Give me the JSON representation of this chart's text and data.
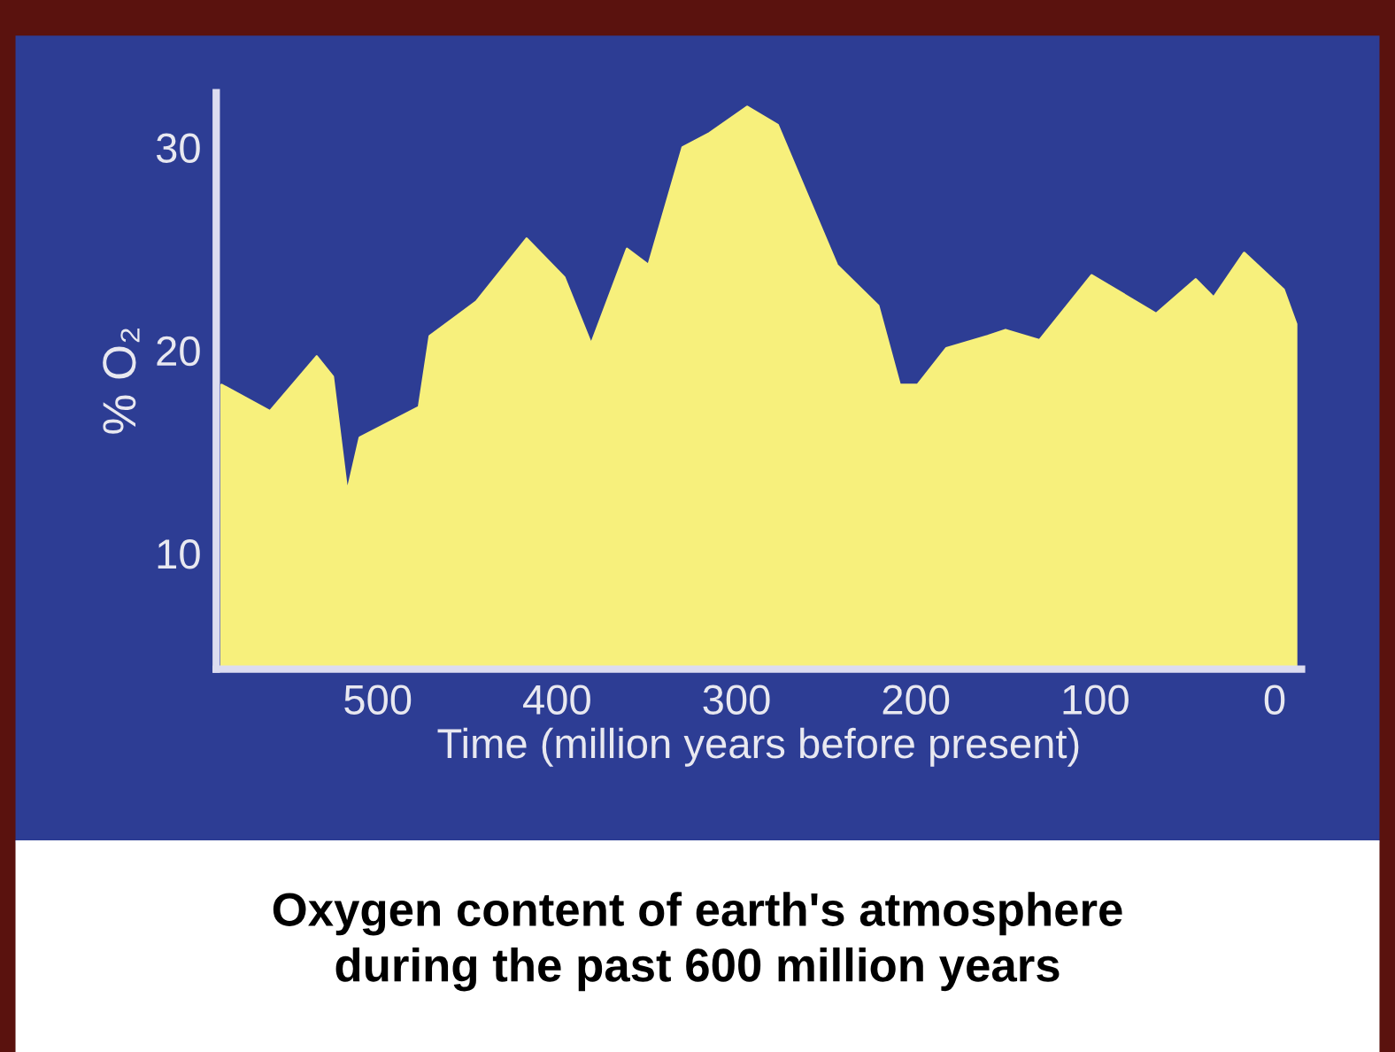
{
  "chart_data": {
    "type": "area",
    "title": "Oxygen content of earth's atmosphere\nduring the past 600 million years",
    "xlabel": "Time (million years before present)",
    "ylabel": "% O₂",
    "x": [
      587,
      560,
      534,
      525,
      517,
      510,
      477,
      471,
      445,
      417,
      396,
      381,
      361,
      349,
      330,
      315,
      294,
      277,
      244,
      221,
      209,
      199,
      183,
      160,
      150,
      131,
      102,
      66,
      44,
      34,
      17,
      -5,
      -12
    ],
    "series": [
      {
        "color": "#f7f07c",
        "values": [
          18.3,
          17.0,
          19.7,
          18.7,
          13.0,
          15.7,
          17.2,
          20.7,
          22.4,
          25.5,
          23.6,
          20.3,
          25.0,
          24.2,
          30.0,
          30.7,
          32.0,
          31.1,
          24.2,
          22.2,
          18.3,
          18.3,
          20.1,
          20.7,
          21.0,
          20.5,
          23.7,
          21.8,
          23.5,
          22.6,
          24.8,
          23.0,
          21.3
        ]
      }
    ],
    "xlim": [
      590,
      -15
    ],
    "ylim": [
      4.3,
      32.7
    ],
    "xticks": [
      500,
      400,
      300,
      200,
      100,
      0
    ],
    "yticks": [
      10,
      20,
      30
    ],
    "grid": false,
    "legend": false
  }
}
